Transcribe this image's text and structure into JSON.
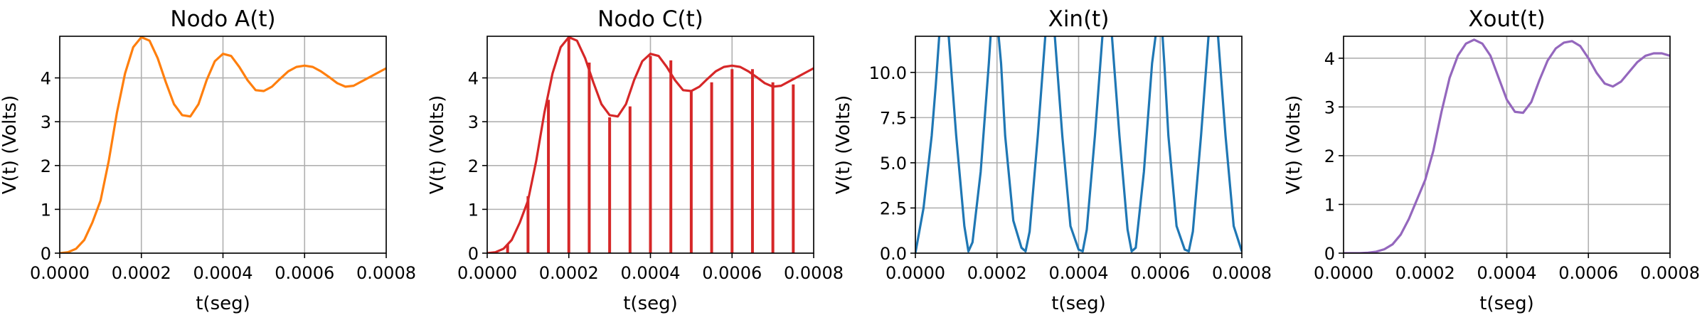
{
  "chart_data": [
    {
      "type": "line",
      "title": "Nodo A(t)",
      "xlabel": "t(seg)",
      "ylabel": "V(t) (Volts)",
      "xlim": [
        0,
        0.0008
      ],
      "ylim": [
        0,
        4.95
      ],
      "grid": true,
      "xticks": [
        "0.0000",
        "0.0002",
        "0.0004",
        "0.0006",
        "0.0008"
      ],
      "yticks": [
        "0",
        "1",
        "2",
        "3",
        "4"
      ],
      "series": [
        {
          "color": "#ff7f0e",
          "x": [
            0,
            2e-05,
            4e-05,
            6e-05,
            8e-05,
            0.0001,
            0.00012,
            0.00014,
            0.00016,
            0.00018,
            0.0002,
            0.00022,
            0.00024,
            0.00026,
            0.00028,
            0.0003,
            0.00032,
            0.00034,
            0.00036,
            0.00038,
            0.0004,
            0.00042,
            0.00044,
            0.00046,
            0.00048,
            0.0005,
            0.00052,
            0.00054,
            0.00056,
            0.00058,
            0.0006,
            0.00062,
            0.00064,
            0.00066,
            0.00068,
            0.0007,
            0.00072,
            0.00074,
            0.00076,
            0.00078,
            0.0008
          ],
          "values": [
            0,
            0.02,
            0.1,
            0.3,
            0.7,
            1.2,
            2.1,
            3.2,
            4.1,
            4.7,
            4.93,
            4.85,
            4.45,
            3.9,
            3.4,
            3.15,
            3.12,
            3.4,
            3.95,
            4.38,
            4.55,
            4.5,
            4.25,
            3.95,
            3.72,
            3.7,
            3.8,
            3.98,
            4.15,
            4.25,
            4.28,
            4.25,
            4.15,
            4.02,
            3.88,
            3.8,
            3.82,
            3.92,
            4.02,
            4.12,
            4.22
          ]
        }
      ]
    },
    {
      "type": "line",
      "title": "Nodo C(t)",
      "xlabel": "t(seg)",
      "ylabel": "V(t) (Volts)",
      "xlim": [
        0,
        0.0008
      ],
      "ylim": [
        0,
        4.95
      ],
      "grid": true,
      "xticks": [
        "0.0000",
        "0.0002",
        "0.0004",
        "0.0006",
        "0.0008"
      ],
      "yticks": [
        "0",
        "1",
        "2",
        "3",
        "4"
      ],
      "series": [
        {
          "color": "#d62728",
          "x": [
            0,
            2e-05,
            4e-05,
            6e-05,
            8e-05,
            0.0001,
            0.00012,
            0.00014,
            0.00016,
            0.00018,
            0.0002,
            0.00022,
            0.00024,
            0.00026,
            0.00028,
            0.0003,
            0.00032,
            0.00034,
            0.00036,
            0.00038,
            0.0004,
            0.00042,
            0.00044,
            0.00046,
            0.00048,
            0.0005,
            0.00052,
            0.00054,
            0.00056,
            0.00058,
            0.0006,
            0.00062,
            0.00064,
            0.00066,
            0.00068,
            0.0007,
            0.00072,
            0.00074,
            0.00076,
            0.00078,
            0.0008
          ],
          "values": [
            0,
            0.02,
            0.1,
            0.3,
            0.7,
            1.2,
            2.1,
            3.2,
            4.1,
            4.7,
            4.93,
            4.85,
            4.45,
            3.9,
            3.4,
            3.15,
            3.12,
            3.4,
            3.95,
            4.38,
            4.55,
            4.5,
            4.25,
            3.95,
            3.72,
            3.7,
            3.8,
            3.98,
            4.15,
            4.25,
            4.28,
            4.25,
            4.15,
            4.02,
            3.88,
            3.8,
            3.82,
            3.92,
            4.02,
            4.12,
            4.22
          ]
        }
      ],
      "stems": {
        "color": "#d62728",
        "x": [
          5e-05,
          0.0001,
          0.00015,
          0.0002,
          0.00025,
          0.0003,
          0.00035,
          0.0004,
          0.00045,
          0.0005,
          0.00055,
          0.0006,
          0.00065,
          0.0007,
          0.00075
        ],
        "values": [
          0.2,
          1.3,
          3.5,
          4.93,
          4.35,
          3.1,
          3.35,
          4.5,
          4.4,
          3.72,
          3.9,
          4.2,
          4.2,
          3.9,
          3.85
        ]
      }
    },
    {
      "type": "line",
      "title": "Xin(t)",
      "xlabel": "t(seg)",
      "ylabel": "V(t) (Volts)",
      "xlim": [
        0,
        0.0008
      ],
      "ylim": [
        0,
        12
      ],
      "grid": true,
      "xticks": [
        "0.0000",
        "0.0002",
        "0.0004",
        "0.0006",
        "0.0008"
      ],
      "yticks": [
        "0.0",
        "2.5",
        "5.0",
        "7.5",
        "10.0"
      ],
      "series": [
        {
          "color": "#1f77b4",
          "x": [
            0,
            2e-05,
            4e-05,
            5e-05,
            6e-05,
            7e-05,
            8e-05,
            0.0001,
            0.00012,
            0.00013,
            0.00014,
            0.00016,
            0.00018,
            0.00019,
            0.0002,
            0.00021,
            0.00022,
            0.00024,
            0.00026,
            0.00027,
            0.00028,
            0.0003,
            0.00032,
            0.00033,
            0.00034,
            0.00036,
            0.00038,
            0.0004,
            0.00041,
            0.00042,
            0.00044,
            0.00046,
            0.00047,
            0.00048,
            0.0005,
            0.00052,
            0.00053,
            0.00054,
            0.00056,
            0.00058,
            0.0006,
            0.00061,
            0.00062,
            0.00064,
            0.00066,
            0.00067,
            0.00068,
            0.0007,
            0.00072,
            0.00073,
            0.00074,
            0.00076,
            0.00078,
            0.0008
          ],
          "values": [
            0,
            2.5,
            6.5,
            9.3,
            12.5,
            14,
            12.5,
            6.5,
            1.5,
            0.1,
            0.6,
            4.5,
            10.5,
            14,
            13,
            10.5,
            6.5,
            1.8,
            0.3,
            0.1,
            1.2,
            6.5,
            12.5,
            14,
            12.5,
            6.5,
            1.5,
            0.2,
            0.1,
            1.3,
            6.5,
            12.5,
            14,
            12.5,
            6.5,
            1.3,
            0.1,
            0.3,
            4.5,
            10.5,
            14,
            10.5,
            6.5,
            1.5,
            0.2,
            0.1,
            1.2,
            6.5,
            12.5,
            14,
            12.5,
            6.5,
            1.5,
            0.1
          ]
        }
      ]
    },
    {
      "type": "line",
      "title": "Xout(t)",
      "xlabel": "t(seg)",
      "ylabel": "V(t) (Volts)",
      "xlim": [
        0,
        0.0008
      ],
      "ylim": [
        0,
        4.45
      ],
      "grid": true,
      "xticks": [
        "0.0000",
        "0.0002",
        "0.0004",
        "0.0006",
        "0.0008"
      ],
      "yticks": [
        "0",
        "1",
        "2",
        "3",
        "4"
      ],
      "series": [
        {
          "color": "#9467bd",
          "x": [
            0,
            2e-05,
            4e-05,
            6e-05,
            8e-05,
            0.0001,
            0.00012,
            0.00014,
            0.00016,
            0.00018,
            0.0002,
            0.00022,
            0.00024,
            0.00026,
            0.00028,
            0.0003,
            0.00032,
            0.00034,
            0.00036,
            0.00038,
            0.0004,
            0.00042,
            0.00044,
            0.00046,
            0.00048,
            0.0005,
            0.00052,
            0.00054,
            0.00056,
            0.00058,
            0.0006,
            0.00062,
            0.00064,
            0.00066,
            0.00068,
            0.0007,
            0.00072,
            0.00074,
            0.00076,
            0.00078,
            0.0008
          ],
          "values": [
            0,
            0,
            0,
            0.01,
            0.03,
            0.08,
            0.18,
            0.38,
            0.7,
            1.1,
            1.5,
            2.1,
            2.9,
            3.6,
            4.05,
            4.3,
            4.38,
            4.3,
            4.05,
            3.6,
            3.15,
            2.9,
            2.88,
            3.1,
            3.55,
            3.95,
            4.2,
            4.32,
            4.35,
            4.25,
            4.0,
            3.7,
            3.48,
            3.42,
            3.52,
            3.72,
            3.92,
            4.05,
            4.1,
            4.1,
            4.05
          ]
        }
      ]
    }
  ]
}
